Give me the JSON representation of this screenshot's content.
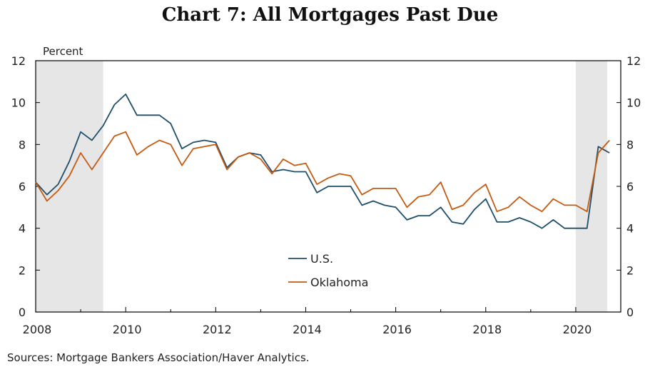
{
  "chart_data": {
    "type": "line",
    "title": "Chart 7: All Mortgages Past Due",
    "unit_label": "Percent",
    "source": "Sources: Mortgage Bankers Association/Haver Analytics.",
    "x": [
      2008.0,
      2008.25,
      2008.5,
      2008.75,
      2009.0,
      2009.25,
      2009.5,
      2009.75,
      2010.0,
      2010.25,
      2010.5,
      2010.75,
      2011.0,
      2011.25,
      2011.5,
      2011.75,
      2012.0,
      2012.25,
      2012.5,
      2012.75,
      2013.0,
      2013.25,
      2013.5,
      2013.75,
      2014.0,
      2014.25,
      2014.5,
      2014.75,
      2015.0,
      2015.25,
      2015.5,
      2015.75,
      2016.0,
      2016.25,
      2016.5,
      2016.75,
      2017.0,
      2017.25,
      2017.5,
      2017.75,
      2018.0,
      2018.25,
      2018.5,
      2018.75,
      2019.0,
      2019.25,
      2019.5,
      2019.75,
      2020.0,
      2020.25,
      2020.5,
      2020.75
    ],
    "series": [
      {
        "name": "U.S.",
        "color": "#1f4e6b",
        "values": [
          6.2,
          5.6,
          6.1,
          7.2,
          8.6,
          8.2,
          8.9,
          9.9,
          10.4,
          9.4,
          9.4,
          9.4,
          9.0,
          7.8,
          8.1,
          8.2,
          8.1,
          6.9,
          7.4,
          7.6,
          7.5,
          6.7,
          6.8,
          6.7,
          6.7,
          5.7,
          6.0,
          6.0,
          6.0,
          5.1,
          5.3,
          5.1,
          5.0,
          4.4,
          4.6,
          4.6,
          5.0,
          4.3,
          4.2,
          4.9,
          5.4,
          4.3,
          4.3,
          4.5,
          4.3,
          4.0,
          4.4,
          4.0,
          4.0,
          4.0,
          7.9,
          7.6
        ]
      },
      {
        "name": "Oklahoma",
        "color": "#c55a11",
        "values": [
          6.2,
          5.3,
          5.8,
          6.5,
          7.6,
          6.8,
          7.6,
          8.4,
          8.6,
          7.5,
          7.9,
          8.2,
          8.0,
          7.0,
          7.8,
          7.9,
          8.0,
          6.8,
          7.4,
          7.6,
          7.3,
          6.6,
          7.3,
          7.0,
          7.1,
          6.1,
          6.4,
          6.6,
          6.5,
          5.6,
          5.9,
          5.9,
          5.9,
          5.0,
          5.5,
          5.6,
          6.2,
          4.9,
          5.1,
          5.7,
          6.1,
          4.8,
          5.0,
          5.5,
          5.1,
          4.8,
          5.4,
          5.1,
          5.1,
          4.8,
          7.6,
          8.2
        ]
      }
    ],
    "xlim": [
      2008,
      2021
    ],
    "ylim": [
      0,
      12
    ],
    "x_ticks": [
      2008,
      2010,
      2012,
      2014,
      2016,
      2018,
      2020
    ],
    "y_ticks": [
      0,
      2,
      4,
      6,
      8,
      10,
      12
    ],
    "recession_shading": [
      [
        2008.0,
        2009.5
      ],
      [
        2020.0,
        2020.7
      ]
    ],
    "shading_color": "#e6e6e6",
    "legend_position": "center-bottom",
    "grid": false
  }
}
